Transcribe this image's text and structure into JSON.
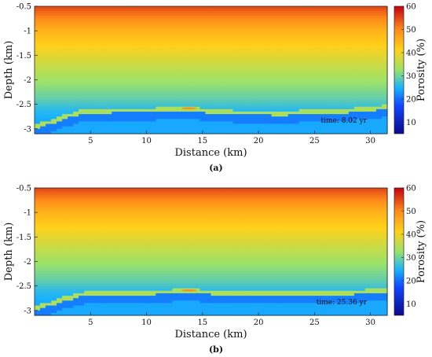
{
  "colors": {
    "deep_blue": "#0a0a8c",
    "cyan": "#19b4ff",
    "green": "#9be26a",
    "yellow": "#ffd11a",
    "orange": "#ff8a1a",
    "red": "#c40010"
  },
  "chart_data": [
    {
      "type": "heatmap",
      "caption": "(a)",
      "xlabel": "Distance (km)",
      "ylabel": "Depth (km)",
      "xlim": [
        0,
        31.5
      ],
      "ylim": [
        -3.1,
        -0.5
      ],
      "xticks": [
        5,
        10,
        15,
        20,
        25,
        30
      ],
      "yticks": [
        -0.5,
        -1,
        -1.5,
        -2,
        -2.5,
        -3
      ],
      "colorbar": {
        "label": "Porosity (%)",
        "range": [
          5,
          60
        ],
        "ticks": [
          10,
          20,
          30,
          40,
          50,
          60
        ]
      },
      "annotation": "time: 8.02 yr",
      "porosity_profile": {
        "depth": [
          -0.5,
          -1.0,
          -1.5,
          -2.0,
          -2.4,
          -2.6,
          -3.1
        ],
        "porosity": [
          55,
          45,
          39,
          33,
          29,
          26,
          22
        ]
      },
      "reservoir_top": {
        "x": [
          0,
          2,
          4,
          6,
          8,
          10,
          12,
          14,
          16,
          18,
          20,
          22,
          24,
          26,
          28,
          30,
          31.5
        ],
        "depth": [
          -2.95,
          -2.8,
          -2.65,
          -2.62,
          -2.61,
          -2.61,
          -2.6,
          -2.58,
          -2.64,
          -2.66,
          -2.66,
          -2.67,
          -2.65,
          -2.64,
          -2.62,
          -2.58,
          -2.55
        ]
      }
    },
    {
      "type": "heatmap",
      "caption": "(b)",
      "xlabel": "Distance (km)",
      "ylabel": "Depth (km)",
      "xlim": [
        0,
        31.5
      ],
      "ylim": [
        -3.1,
        -0.5
      ],
      "xticks": [
        5,
        10,
        15,
        20,
        25,
        30
      ],
      "yticks": [
        -0.5,
        -1,
        -1.5,
        -2,
        -2.5,
        -3
      ],
      "colorbar": {
        "label": "Porosity (%)",
        "range": [
          5,
          60
        ],
        "ticks": [
          10,
          20,
          30,
          40,
          50,
          60
        ]
      },
      "annotation": "time: 25.36 yr",
      "porosity_profile": {
        "depth": [
          -0.5,
          -1.0,
          -1.5,
          -2.0,
          -2.4,
          -2.6,
          -3.1
        ],
        "porosity": [
          55,
          45,
          39,
          33,
          29,
          26,
          22
        ]
      },
      "reservoir_top": {
        "x": [
          0,
          2,
          4,
          6,
          8,
          10,
          12,
          14,
          16,
          18,
          20,
          22,
          24,
          26,
          28,
          30,
          31.5
        ],
        "depth": [
          -2.95,
          -2.8,
          -2.66,
          -2.63,
          -2.62,
          -2.62,
          -2.61,
          -2.59,
          -2.62,
          -2.64,
          -2.65,
          -2.65,
          -2.64,
          -2.63,
          -2.62,
          -2.6,
          -2.58
        ]
      }
    }
  ]
}
